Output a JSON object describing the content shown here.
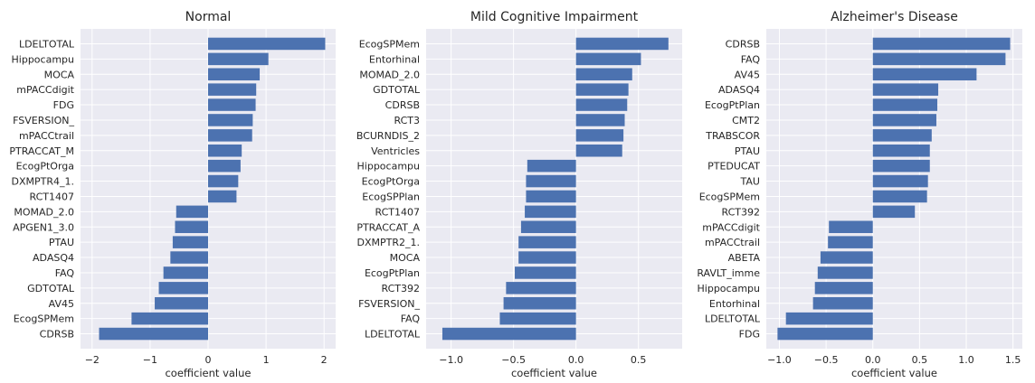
{
  "chart_data": [
    {
      "type": "bar",
      "orientation": "horizontal",
      "title": "Normal",
      "xlabel": "coefficient value",
      "ylabel": "",
      "xlim": [
        -2.2,
        2.2
      ],
      "xticks": [
        -2,
        -1,
        0,
        1,
        2
      ],
      "xtick_labels": [
        "−2",
        "−1",
        "0",
        "1",
        "2"
      ],
      "grid": true,
      "categories": [
        "LDELTOTAL",
        "Hippocampu",
        "MOCA",
        "mPACCdigit",
        "FDG",
        "FSVERSION_",
        "mPACCtrail",
        "PTRACCAT_M",
        "EcogPtOrga",
        "DXMPTR4_1.",
        "RCT1407",
        "MOMAD_2.0",
        "APGEN1_3.0",
        "PTAU",
        "ADASQ4",
        "FAQ",
        "GDTOTAL",
        "AV45",
        "EcogSPMem",
        "CDRSB"
      ],
      "values": [
        2.02,
        1.04,
        0.89,
        0.83,
        0.82,
        0.77,
        0.76,
        0.58,
        0.56,
        0.52,
        0.49,
        -0.55,
        -0.57,
        -0.61,
        -0.65,
        -0.77,
        -0.85,
        -0.92,
        -1.32,
        -1.88
      ]
    },
    {
      "type": "bar",
      "orientation": "horizontal",
      "title": "Mild Cognitive Impairment",
      "xlabel": "coefficient value",
      "ylabel": "",
      "xlim": [
        -1.2,
        0.85
      ],
      "xticks": [
        -1.0,
        -0.5,
        0.0,
        0.5
      ],
      "xtick_labels": [
        "−1.0",
        "−0.5",
        "0.0",
        "0.5"
      ],
      "grid": true,
      "categories": [
        "EcogSPMem",
        "Entorhinal",
        "MOMAD_2.0",
        "GDTOTAL",
        "CDRSB",
        "RCT3",
        "BCURNDIS_2",
        "Ventricles",
        "Hippocampu",
        "EcogPtOrga",
        "EcogSPPlan",
        "RCT1407",
        "PTRACCAT_A",
        "DXMPTR2_1.",
        "MOCA",
        "EcogPtPlan",
        "RCT392",
        "FSVERSION_",
        "FAQ",
        "LDELTOTAL"
      ],
      "values": [
        0.74,
        0.52,
        0.45,
        0.42,
        0.41,
        0.39,
        0.38,
        0.37,
        -0.39,
        -0.4,
        -0.4,
        -0.41,
        -0.44,
        -0.46,
        -0.46,
        -0.49,
        -0.56,
        -0.58,
        -0.61,
        -1.07
      ]
    },
    {
      "type": "bar",
      "orientation": "horizontal",
      "title": "Alzheimer's Disease",
      "xlabel": "coefficient value",
      "ylabel": "",
      "xlim": [
        -1.14,
        1.6
      ],
      "xticks": [
        -1.0,
        -0.5,
        0.0,
        0.5,
        1.0,
        1.5
      ],
      "xtick_labels": [
        "−1.0",
        "−0.5",
        "0.0",
        "0.5",
        "1.0",
        "1.5"
      ],
      "grid": true,
      "categories": [
        "CDRSB",
        "FAQ",
        "AV45",
        "ADASQ4",
        "EcogPtPlan",
        "CMT2",
        "TRABSCOR",
        "PTAU",
        "PTEDUCAT",
        "TAU",
        "EcogSPMem",
        "RCT392",
        "mPACCdigit",
        "mPACCtrail",
        "ABETA",
        "RAVLT_imme",
        "Hippocampu",
        "Entorhinal",
        "LDELTOTAL",
        "FDG"
      ],
      "values": [
        1.47,
        1.42,
        1.11,
        0.7,
        0.69,
        0.68,
        0.63,
        0.61,
        0.61,
        0.59,
        0.58,
        0.45,
        -0.47,
        -0.48,
        -0.56,
        -0.59,
        -0.62,
        -0.64,
        -0.93,
        -1.02
      ]
    }
  ]
}
